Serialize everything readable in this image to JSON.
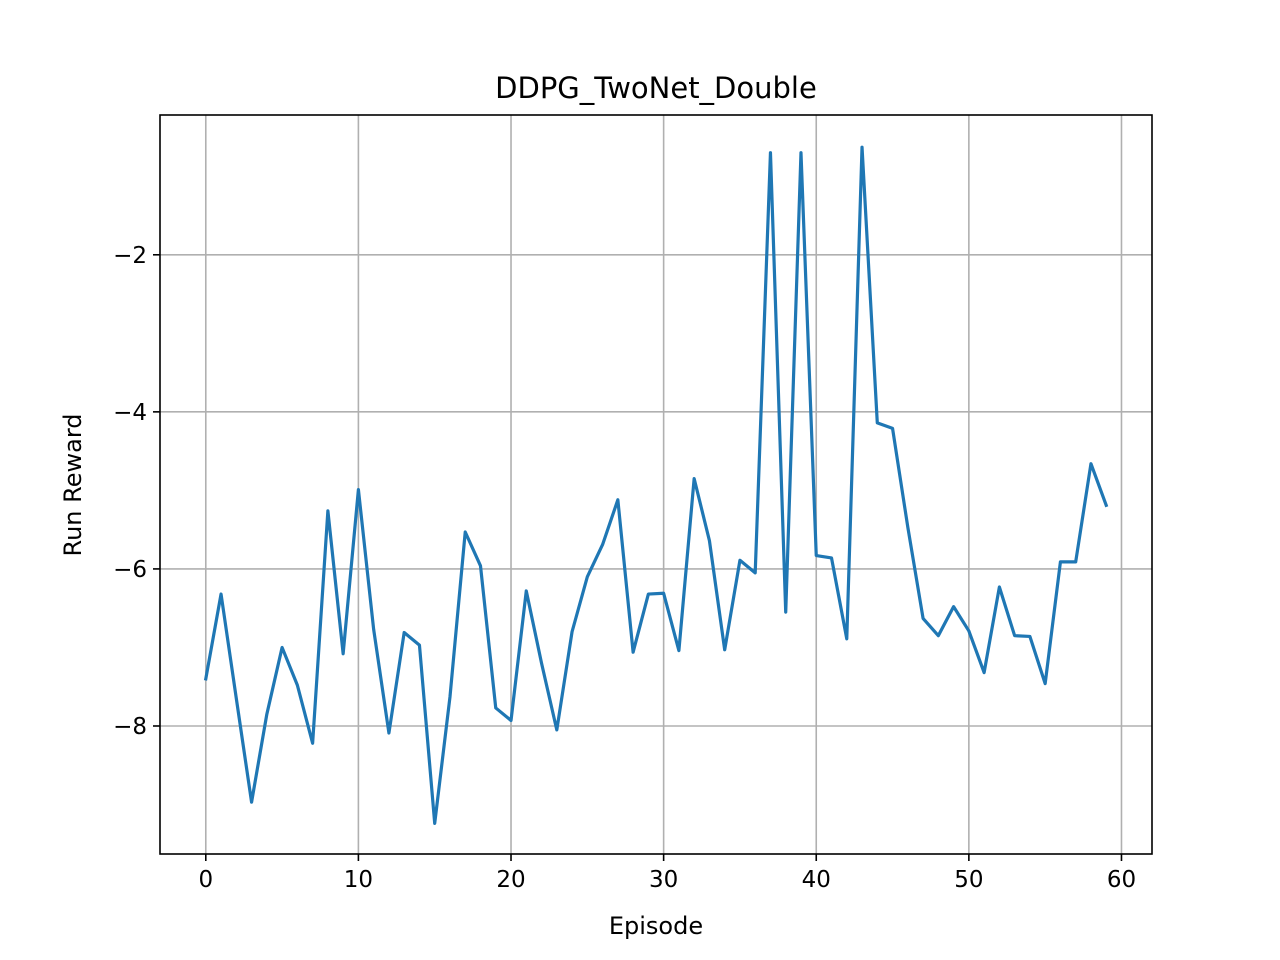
{
  "chart_data": {
    "type": "line",
    "title": "DDPG_TwoNet_Double",
    "xlabel": "Episode",
    "ylabel": "Run Reward",
    "xlim": [
      -3,
      62
    ],
    "ylim": [
      -9.63,
      -0.22
    ],
    "xticks": [
      0,
      10,
      20,
      30,
      40,
      50,
      60
    ],
    "xtick_labels": [
      "0",
      "10",
      "20",
      "30",
      "40",
      "50",
      "60"
    ],
    "yticks": [
      -8,
      -6,
      -4,
      -2
    ],
    "ytick_labels": [
      "−8",
      "−6",
      "−4",
      "−2"
    ],
    "grid": true,
    "series": [
      {
        "color": "#1f77b4",
        "x": [
          0,
          1,
          2,
          3,
          4,
          5,
          6,
          7,
          8,
          9,
          10,
          11,
          12,
          13,
          14,
          15,
          16,
          17,
          18,
          19,
          20,
          21,
          22,
          23,
          24,
          25,
          26,
          27,
          28,
          29,
          30,
          31,
          32,
          33,
          34,
          35,
          36,
          37,
          38,
          39,
          40,
          41,
          42,
          43,
          44,
          45,
          46,
          47,
          48,
          49,
          50,
          51,
          52,
          53,
          54,
          55,
          56,
          57,
          58,
          59
        ],
        "y": [
          -7.4,
          -6.32,
          -7.65,
          -8.97,
          -7.85,
          -7.0,
          -7.48,
          -8.22,
          -5.26,
          -7.08,
          -4.99,
          -6.77,
          -8.09,
          -6.81,
          -6.97,
          -9.24,
          -7.63,
          -5.53,
          -5.96,
          -7.77,
          -7.93,
          -6.28,
          -7.2,
          -8.05,
          -6.8,
          -6.1,
          -5.69,
          -5.12,
          -7.06,
          -6.32,
          -6.31,
          -7.04,
          -4.85,
          -5.64,
          -7.03,
          -5.89,
          -6.05,
          -0.7,
          -6.55,
          -0.7,
          -5.83,
          -5.86,
          -6.89,
          -0.63,
          -4.14,
          -4.21,
          -5.47,
          -6.63,
          -6.85,
          -6.48,
          -6.79,
          -7.32,
          -6.23,
          -6.85,
          -6.86,
          -7.46,
          -5.91,
          -5.91,
          -4.66,
          -5.19
        ]
      }
    ]
  }
}
